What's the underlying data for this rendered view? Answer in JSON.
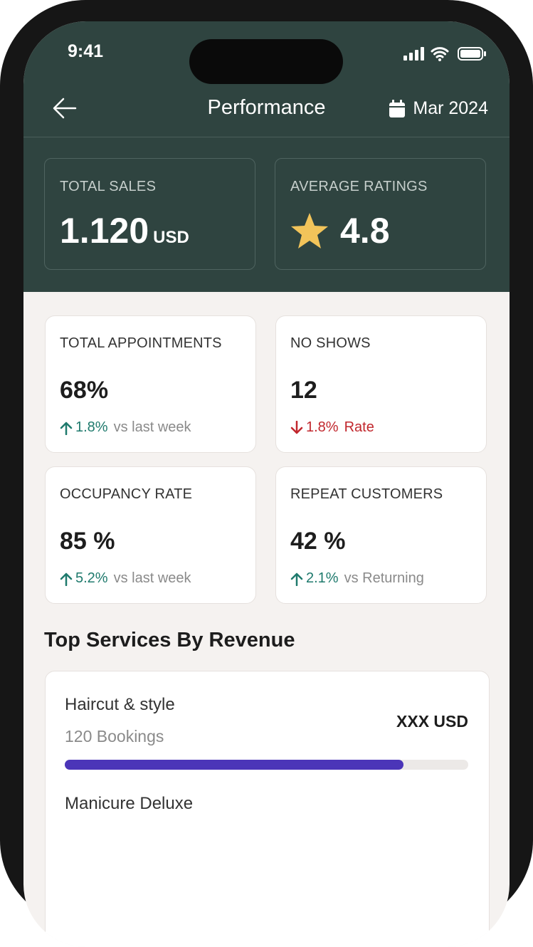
{
  "status_bar": {
    "time": "9:41"
  },
  "header": {
    "title": "Performance",
    "date": "Mar 2024"
  },
  "summary": [
    {
      "label": "TOTAL SALES",
      "value": "1.120",
      "unit": "USD"
    },
    {
      "label": "AVERAGE RATINGS",
      "value": "4.8"
    }
  ],
  "metrics": [
    {
      "label": "TOTAL APPOINTMENTS",
      "value": "68%",
      "change": "1.8%",
      "note": "vs last week",
      "trend": "up"
    },
    {
      "label": "NO SHOWS",
      "value": "12",
      "change": "1.8%",
      "note": "Rate",
      "trend": "down"
    },
    {
      "label": "OCCUPANCY RATE",
      "value": "85 %",
      "change": "5.2%",
      "note": "vs last week",
      "trend": "up"
    },
    {
      "label": "REPEAT CUSTOMERS",
      "value": "42 %",
      "change": "2.1%",
      "note": "vs Returning",
      "trend": "up"
    }
  ],
  "services": {
    "title": "Top Services By Revenue",
    "items": [
      {
        "name": "Haircut & style",
        "bookings": "120 Bookings",
        "revenue": "XXX USD",
        "share": 84
      },
      {
        "name": "Manicure Deluxe"
      }
    ]
  }
}
